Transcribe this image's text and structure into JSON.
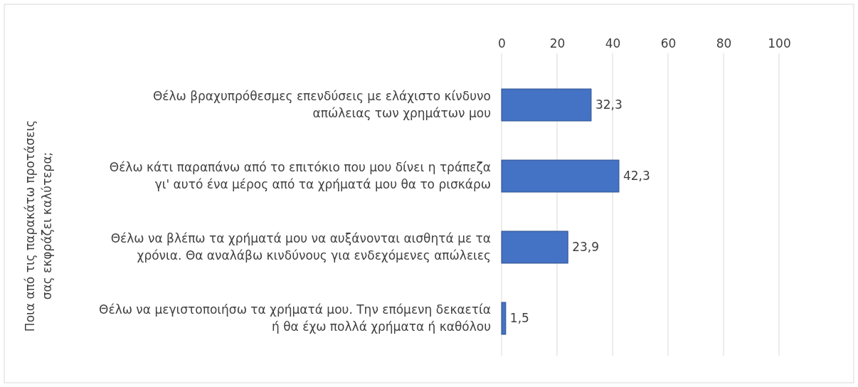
{
  "chart_data": {
    "type": "bar",
    "orientation": "horizontal",
    "ylabel": "Ποια από τις παρακάτω προτάσεις σας εκφράζει καλύτερα;",
    "categories": [
      "Θέλω βραχυπρόθεσμες επενδύσεις με ελάχιστο κίνδυνο απώλειας των χρημάτων μου",
      "Θέλω κάτι παραπάνω από το επιτόκιο που μου δίνει η τράπεζα γι' αυτό ένα μέρος από τα χρήματά μου θα το ρισκάρω",
      "Θέλω να βλέπω τα χρήματά μου να αυξάνονται αισθητά με τα χρόνια. Θα αναλάβω κινδύνους για ενδεχόμενες απώλειες",
      "Θέλω να μεγιστοποιήσω τα χρήματά μου. Την επόμενη δεκαετία ή θα έχω πολλά χρήματα ή καθόλου"
    ],
    "values": [
      32.3,
      42.3,
      23.9,
      1.5
    ],
    "value_labels": [
      "32,3",
      "42,3",
      "23,9",
      "1,5"
    ],
    "color": "#4472c4",
    "xlim": [
      0,
      100
    ],
    "xticks": [
      0,
      20,
      40,
      60,
      80,
      100
    ],
    "grid": "x"
  }
}
